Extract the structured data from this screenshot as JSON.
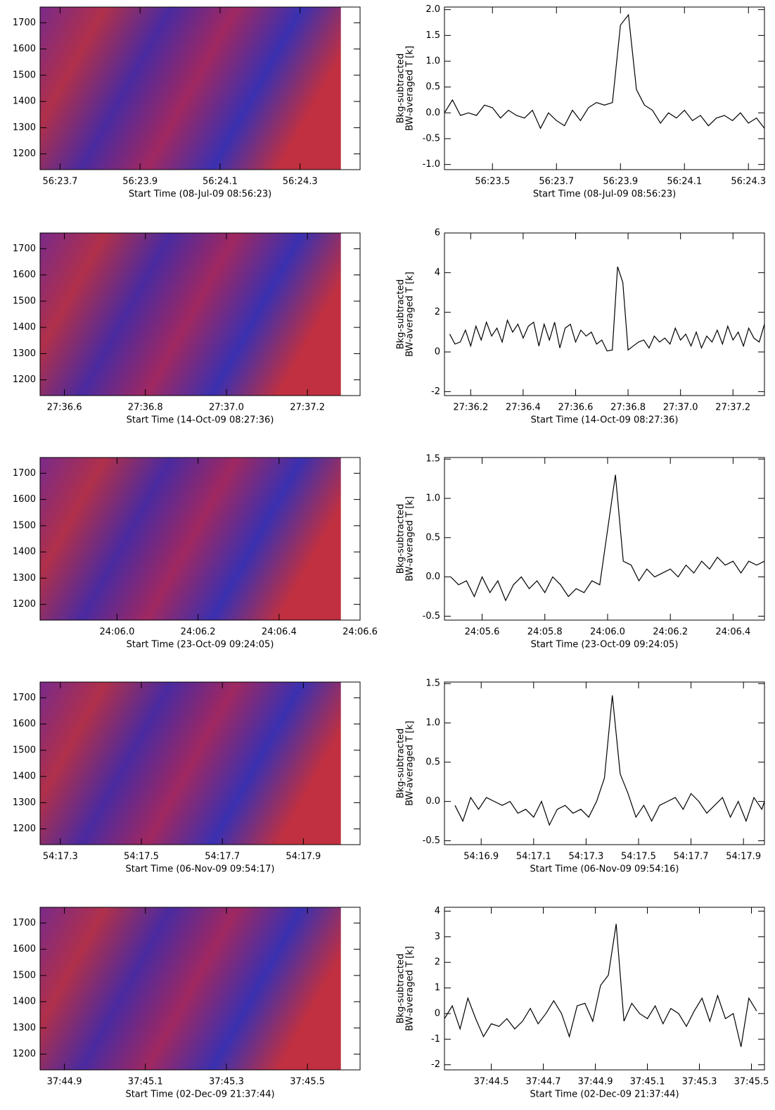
{
  "chart_data": [
    {
      "type": "heatmap",
      "xlabel": "Start Time (08-Jul-09 08:56:23)",
      "xlim": [
        23.65,
        24.45
      ],
      "ylim": [
        1140,
        1760
      ],
      "xticks": [
        {
          "value": 23.7,
          "label": "56:23.7"
        },
        {
          "value": 23.9,
          "label": "56:23.9"
        },
        {
          "value": 24.1,
          "label": "56:24.1"
        },
        {
          "value": 24.3,
          "label": "56:24.3"
        }
      ],
      "yticks": [
        1200,
        1300,
        1400,
        1500,
        1600,
        1700
      ]
    },
    {
      "type": "line",
      "ylabel": [
        "Bkg-subtracted",
        "BW-averaged T [k]"
      ],
      "xlabel": "Start Time (08-Jul-09 08:56:23)",
      "color": "#000000",
      "xlim": [
        23.35,
        24.35
      ],
      "ylim": [
        -1.1,
        2.05
      ],
      "xticks": [
        {
          "value": 23.5,
          "label": "56:23.5"
        },
        {
          "value": 23.7,
          "label": "56:23.7"
        },
        {
          "value": 23.9,
          "label": "56:23.9"
        },
        {
          "value": 24.1,
          "label": "56:24.1"
        },
        {
          "value": 24.3,
          "label": "56:24.3"
        }
      ],
      "yticks": [
        {
          "value": -1,
          "label": "-1.0"
        },
        -0.5,
        {
          "value": 0,
          "label": "0.0"
        },
        0.5,
        {
          "value": 1,
          "label": "1.0"
        },
        1.5,
        {
          "value": 2,
          "label": "2.0"
        }
      ],
      "x": [
        23.35,
        23.375,
        23.4,
        23.425,
        23.45,
        23.475,
        23.5,
        23.525,
        23.55,
        23.575,
        23.6,
        23.625,
        23.65,
        23.675,
        23.7,
        23.725,
        23.75,
        23.775,
        23.8,
        23.825,
        23.85,
        23.875,
        23.9,
        23.925,
        23.95,
        23.975,
        24.0,
        24.025,
        24.05,
        24.075,
        24.1,
        24.125,
        24.15,
        24.175,
        24.2,
        24.225,
        24.25,
        24.275,
        24.3,
        24.325,
        24.35
      ],
      "values": [
        0.0,
        0.25,
        -0.05,
        0.0,
        -0.05,
        0.15,
        0.1,
        -0.1,
        0.05,
        -0.05,
        -0.1,
        0.05,
        -0.3,
        0.0,
        -0.15,
        -0.25,
        0.05,
        -0.15,
        0.1,
        0.2,
        0.15,
        0.2,
        1.7,
        1.9,
        0.45,
        0.15,
        0.05,
        -0.2,
        0.0,
        -0.1,
        0.05,
        -0.15,
        -0.05,
        -0.25,
        -0.1,
        -0.05,
        -0.15,
        0.0,
        -0.2,
        -0.1,
        -0.3
      ]
    },
    {
      "type": "heatmap",
      "xlabel": "Start Time (14-Oct-09 08:27:36)",
      "xlim": [
        36.54,
        37.33
      ],
      "ylim": [
        1140,
        1760
      ],
      "xticks": [
        {
          "value": 36.6,
          "label": "27:36.6"
        },
        {
          "value": 36.8,
          "label": "27:36.8"
        },
        {
          "value": 37.0,
          "label": "27:37.0"
        },
        {
          "value": 37.2,
          "label": "27:37.2"
        }
      ],
      "yticks": [
        1200,
        1300,
        1400,
        1500,
        1600,
        1700
      ]
    },
    {
      "type": "line",
      "ylabel": [
        "Bkg-subtracted",
        "BW-averaged T [k]"
      ],
      "xlabel": "Start Time (14-Oct-09 08:27:36)",
      "color": "#000000",
      "xlim": [
        36.1,
        37.32
      ],
      "ylim": [
        -2.2,
        6.0
      ],
      "xticks": [
        {
          "value": 36.2,
          "label": "27:36.2"
        },
        {
          "value": 36.4,
          "label": "27:36.4"
        },
        {
          "value": 36.6,
          "label": "27:36.6"
        },
        {
          "value": 36.8,
          "label": "27:36.8"
        },
        {
          "value": 37.0,
          "label": "27:37.0"
        },
        {
          "value": 37.2,
          "label": "27:37.2"
        }
      ],
      "yticks": [
        -2,
        0,
        2,
        4,
        6
      ],
      "x": [
        36.12,
        36.14,
        36.16,
        36.18,
        36.2,
        36.22,
        36.24,
        36.26,
        36.28,
        36.3,
        36.32,
        36.34,
        36.36,
        36.38,
        36.4,
        36.42,
        36.44,
        36.46,
        36.48,
        36.5,
        36.52,
        36.54,
        36.56,
        36.58,
        36.6,
        36.62,
        36.64,
        36.66,
        36.68,
        36.7,
        36.72,
        36.74,
        36.76,
        36.78,
        36.8,
        36.82,
        36.84,
        36.86,
        36.88,
        36.9,
        36.92,
        36.94,
        36.96,
        36.98,
        37.0,
        37.02,
        37.04,
        37.06,
        37.08,
        37.1,
        37.12,
        37.14,
        37.16,
        37.18,
        37.2,
        37.22,
        37.24,
        37.26,
        37.28,
        37.3,
        37.32
      ],
      "values": [
        0.9,
        0.4,
        0.5,
        1.1,
        0.3,
        1.3,
        0.6,
        1.5,
        0.8,
        1.2,
        0.5,
        1.6,
        1.0,
        1.4,
        0.7,
        1.3,
        1.5,
        0.3,
        1.4,
        0.6,
        1.5,
        0.2,
        1.2,
        1.4,
        0.5,
        1.1,
        0.8,
        1.0,
        0.4,
        0.6,
        0.05,
        0.1,
        4.3,
        3.5,
        0.1,
        0.3,
        0.5,
        0.6,
        0.2,
        0.8,
        0.5,
        0.7,
        0.4,
        1.2,
        0.6,
        0.9,
        0.3,
        1.0,
        0.2,
        0.8,
        0.5,
        1.1,
        0.4,
        1.3,
        0.6,
        1.0,
        0.3,
        1.2,
        0.7,
        0.5,
        1.4
      ]
    },
    {
      "type": "heatmap",
      "xlabel": "Start Time (23-Oct-09 09:24:05)",
      "xlim": [
        5.81,
        6.6
      ],
      "ylim": [
        1140,
        1760
      ],
      "xticks": [
        {
          "value": 6.0,
          "label": "24:06.0"
        },
        {
          "value": 6.2,
          "label": "24:06.2"
        },
        {
          "value": 6.4,
          "label": "24:06.4"
        },
        {
          "value": 6.6,
          "label": "24:06.6"
        }
      ],
      "yticks": [
        1200,
        1300,
        1400,
        1500,
        1600,
        1700
      ]
    },
    {
      "type": "line",
      "ylabel": [
        "Bkg-subtracted",
        "BW-averaged T [k]"
      ],
      "xlabel": "Start Time (23-Oct-09 09:24:05)",
      "color": "#000000",
      "xlim": [
        5.48,
        6.5
      ],
      "ylim": [
        -0.55,
        1.52
      ],
      "xticks": [
        {
          "value": 5.6,
          "label": "24:05.6"
        },
        {
          "value": 5.8,
          "label": "24:05.8"
        },
        {
          "value": 6.0,
          "label": "24:06.0"
        },
        {
          "value": 6.2,
          "label": "24:06.2"
        },
        {
          "value": 6.4,
          "label": "24:06.4"
        }
      ],
      "yticks": [
        -0.5,
        {
          "value": 0,
          "label": "0.0"
        },
        0.5,
        {
          "value": 1,
          "label": "1.0"
        },
        1.5
      ],
      "x": [
        5.5,
        5.525,
        5.55,
        5.575,
        5.6,
        5.625,
        5.65,
        5.675,
        5.7,
        5.725,
        5.75,
        5.775,
        5.8,
        5.825,
        5.85,
        5.875,
        5.9,
        5.925,
        5.95,
        5.975,
        6.0,
        6.025,
        6.05,
        6.075,
        6.1,
        6.125,
        6.15,
        6.175,
        6.2,
        6.225,
        6.25,
        6.275,
        6.3,
        6.325,
        6.35,
        6.375,
        6.4,
        6.425,
        6.45,
        6.475,
        6.5
      ],
      "values": [
        0.0,
        -0.1,
        -0.05,
        -0.25,
        0.0,
        -0.2,
        -0.05,
        -0.3,
        -0.1,
        0.0,
        -0.15,
        -0.05,
        -0.2,
        0.0,
        -0.1,
        -0.25,
        -0.15,
        -0.2,
        -0.05,
        -0.1,
        0.6,
        1.3,
        0.2,
        0.15,
        -0.05,
        0.1,
        0.0,
        0.05,
        0.1,
        0.0,
        0.15,
        0.05,
        0.2,
        0.1,
        0.25,
        0.15,
        0.2,
        0.05,
        0.2,
        0.15,
        0.2
      ]
    },
    {
      "type": "heatmap",
      "xlabel": "Start Time (06-Nov-09 09:54:17)",
      "xlim": [
        17.25,
        18.04
      ],
      "ylim": [
        1140,
        1760
      ],
      "xticks": [
        {
          "value": 17.3,
          "label": "54:17.3"
        },
        {
          "value": 17.5,
          "label": "54:17.5"
        },
        {
          "value": 17.7,
          "label": "54:17.7"
        },
        {
          "value": 17.9,
          "label": "54:17.9"
        }
      ],
      "yticks": [
        1200,
        1300,
        1400,
        1500,
        1600,
        1700
      ]
    },
    {
      "type": "line",
      "ylabel": [
        "Bkg-subtracted",
        "BW-averaged T [k]"
      ],
      "xlabel": "Start Time (06-Nov-09 09:54:16)",
      "color": "#000000",
      "xlim": [
        16.76,
        17.98
      ],
      "ylim": [
        -0.55,
        1.52
      ],
      "xticks": [
        {
          "value": 16.9,
          "label": "54:16.9"
        },
        {
          "value": 17.1,
          "label": "54:17.1"
        },
        {
          "value": 17.3,
          "label": "54:17.3"
        },
        {
          "value": 17.5,
          "label": "54:17.5"
        },
        {
          "value": 17.7,
          "label": "54:17.7"
        },
        {
          "value": 17.9,
          "label": "54:17.9"
        }
      ],
      "yticks": [
        -0.5,
        {
          "value": 0,
          "label": "0.0"
        },
        0.5,
        {
          "value": 1,
          "label": "1.0"
        },
        1.5
      ],
      "x": [
        16.8,
        16.83,
        16.86,
        16.89,
        16.92,
        16.95,
        16.98,
        17.01,
        17.04,
        17.07,
        17.1,
        17.13,
        17.16,
        17.19,
        17.22,
        17.25,
        17.28,
        17.31,
        17.34,
        17.37,
        17.4,
        17.43,
        17.46,
        17.49,
        17.52,
        17.55,
        17.58,
        17.61,
        17.64,
        17.67,
        17.7,
        17.73,
        17.76,
        17.79,
        17.82,
        17.85,
        17.88,
        17.91,
        17.94,
        17.97,
        17.98
      ],
      "values": [
        -0.05,
        -0.25,
        0.05,
        -0.1,
        0.05,
        0.0,
        -0.05,
        0.0,
        -0.15,
        -0.1,
        -0.2,
        0.0,
        -0.3,
        -0.1,
        -0.05,
        -0.15,
        -0.1,
        -0.2,
        0.0,
        0.3,
        1.35,
        0.35,
        0.1,
        -0.2,
        -0.05,
        -0.25,
        -0.05,
        0.0,
        0.05,
        -0.1,
        0.1,
        0.0,
        -0.15,
        -0.05,
        0.05,
        -0.2,
        0.0,
        -0.25,
        0.05,
        -0.1,
        0.0
      ]
    },
    {
      "type": "heatmap",
      "xlabel": "Start Time (02-Dec-09 21:37:44)",
      "xlim": [
        44.84,
        45.63
      ],
      "ylim": [
        1140,
        1760
      ],
      "xticks": [
        {
          "value": 44.9,
          "label": "37:44.9"
        },
        {
          "value": 45.1,
          "label": "37:45.1"
        },
        {
          "value": 45.3,
          "label": "37:45.3"
        },
        {
          "value": 45.5,
          "label": "37:45.5"
        }
      ],
      "yticks": [
        1200,
        1300,
        1400,
        1500,
        1600,
        1700
      ]
    },
    {
      "type": "line",
      "ylabel": [
        "Bkg-subtracted",
        "BW-averaged T [k]"
      ],
      "xlabel": "Start Time (02-Dec-09 21:37:44)",
      "color": "#000000",
      "xlim": [
        44.32,
        45.55
      ],
      "ylim": [
        -2.2,
        4.15
      ],
      "xticks": [
        {
          "value": 44.5,
          "label": "37:44.5"
        },
        {
          "value": 44.7,
          "label": "37:44.7"
        },
        {
          "value": 44.9,
          "label": "37:44.9"
        },
        {
          "value": 45.1,
          "label": "37:45.1"
        },
        {
          "value": 45.3,
          "label": "37:45.3"
        },
        {
          "value": 45.5,
          "label": "37:45.5"
        }
      ],
      "yticks": [
        -2,
        -1,
        0,
        1,
        2,
        3,
        4
      ],
      "x": [
        44.32,
        44.35,
        44.38,
        44.41,
        44.44,
        44.47,
        44.5,
        44.53,
        44.56,
        44.59,
        44.62,
        44.65,
        44.68,
        44.71,
        44.74,
        44.77,
        44.8,
        44.83,
        44.86,
        44.89,
        44.92,
        44.95,
        44.98,
        45.01,
        45.04,
        45.07,
        45.1,
        45.13,
        45.16,
        45.19,
        45.22,
        45.25,
        45.28,
        45.31,
        45.34,
        45.37,
        45.4,
        45.43,
        45.46,
        45.49,
        45.52
      ],
      "values": [
        -0.2,
        0.3,
        -0.6,
        0.6,
        -0.2,
        -0.9,
        -0.4,
        -0.5,
        -0.2,
        -0.6,
        -0.3,
        0.2,
        -0.4,
        0.0,
        0.5,
        0.0,
        -0.9,
        0.3,
        0.4,
        -0.3,
        1.1,
        1.5,
        3.5,
        -0.3,
        0.4,
        0.0,
        -0.2,
        0.3,
        -0.4,
        0.2,
        0.0,
        -0.5,
        0.1,
        0.6,
        -0.3,
        0.7,
        -0.2,
        0.0,
        -1.3,
        0.6,
        0.1
      ]
    }
  ]
}
